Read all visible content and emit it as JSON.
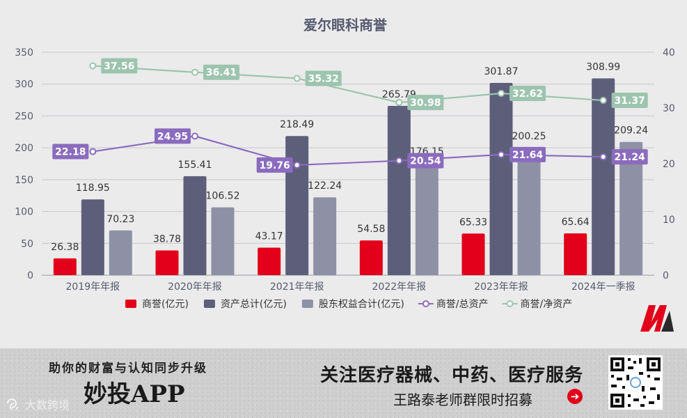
{
  "chart_data": {
    "type": "bar",
    "title": "爱尔眼科商誉",
    "categories": [
      "2019年年报",
      "2020年年报",
      "2021年年报",
      "2022年年报",
      "2023年年报",
      "2024年一季报"
    ],
    "series": [
      {
        "name": "商誉(亿元)",
        "kind": "bar",
        "axis": "left",
        "color": "#e2001a",
        "values": [
          26.38,
          38.78,
          43.17,
          54.58,
          65.33,
          65.64
        ]
      },
      {
        "name": "资产总计(亿元)",
        "kind": "bar",
        "axis": "left",
        "color": "#5d5f7a",
        "values": [
          118.95,
          155.41,
          218.49,
          265.79,
          301.87,
          308.99
        ]
      },
      {
        "name": "股东权益合计(亿元)",
        "kind": "bar",
        "axis": "left",
        "color": "#8e91a6",
        "values": [
          70.23,
          106.52,
          122.24,
          176.15,
          200.25,
          209.24
        ]
      },
      {
        "name": "商誉/总资产",
        "kind": "line",
        "axis": "right",
        "color": "#8a6bbd",
        "values": [
          22.18,
          24.95,
          19.76,
          20.54,
          21.64,
          21.24
        ]
      },
      {
        "name": "商誉/净资产",
        "kind": "line",
        "axis": "right",
        "color": "#9cc4ae",
        "values": [
          37.56,
          36.41,
          35.32,
          30.98,
          32.62,
          31.37
        ]
      }
    ],
    "bar_labels": [
      [
        "26.38",
        "38.78",
        "43.17",
        "54.58",
        "65.33",
        "65.64"
      ],
      [
        "118.95",
        "155.41",
        "218.49",
        "265.79",
        "301.87",
        "308.99"
      ],
      [
        "70.23",
        "106.52",
        "122.24",
        "176.15",
        "200.25",
        "209.24"
      ]
    ],
    "line_labels": [
      [
        "22.18",
        "24.95",
        "19.76",
        "20.54",
        "21.64",
        "21.24"
      ],
      [
        "37.56",
        "36.41",
        "35.32",
        "30.98",
        "32.62",
        "31.37"
      ]
    ],
    "y_left": {
      "min": 0,
      "max": 350,
      "ticks": [
        "0",
        "50",
        "100",
        "150",
        "200",
        "250",
        "300",
        "350"
      ]
    },
    "y_right": {
      "min": 0,
      "max": 40,
      "ticks": [
        "0",
        "10",
        "20",
        "30",
        "40"
      ]
    },
    "grid": true,
    "legend_position": "bottom"
  },
  "banner": {
    "tagline": "助你的财富与认知同步升级",
    "app_name": "妙投APP",
    "headline": "关注医疗器械、中药、医疗服务",
    "subline": "王路泰老师群限时招募",
    "watermark": "大数跨境"
  },
  "colors": {
    "background": "#ebebeb",
    "grid": "#c8c8cf",
    "axis_text": "#555a6e",
    "title": "#555a6e",
    "brand_red": "#e2001a"
  }
}
